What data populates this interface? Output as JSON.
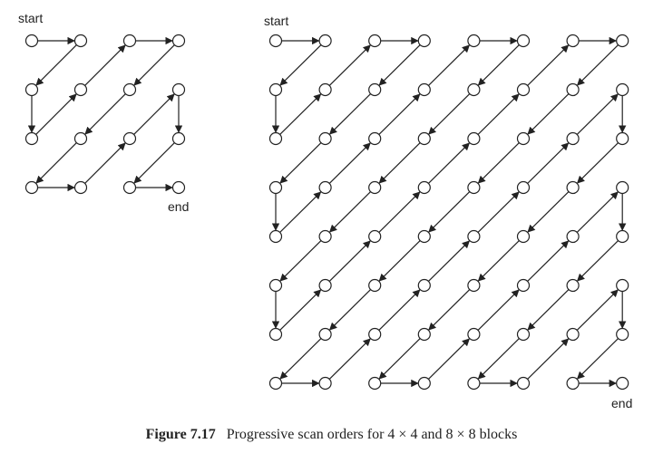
{
  "diagram_small": {
    "grid_size": 4,
    "start_label": "start",
    "end_label": "end",
    "scan_order": [
      [
        0,
        0
      ],
      [
        0,
        1
      ],
      [
        1,
        0
      ],
      [
        2,
        0
      ],
      [
        1,
        1
      ],
      [
        0,
        2
      ],
      [
        0,
        3
      ],
      [
        1,
        2
      ],
      [
        2,
        1
      ],
      [
        3,
        0
      ],
      [
        3,
        1
      ],
      [
        2,
        2
      ],
      [
        1,
        3
      ],
      [
        2,
        3
      ],
      [
        3,
        2
      ],
      [
        3,
        3
      ]
    ]
  },
  "diagram_large": {
    "grid_size": 8,
    "start_label": "start",
    "end_label": "end",
    "scan_order": "zigzag"
  },
  "caption": {
    "figure_label": "Figure 7.17",
    "text": "Progressive scan orders for 4 × 4 and 8 × 8 blocks"
  },
  "colors": {
    "node_stroke": "#222222",
    "node_fill": "#ffffff",
    "arrow": "#222222"
  }
}
